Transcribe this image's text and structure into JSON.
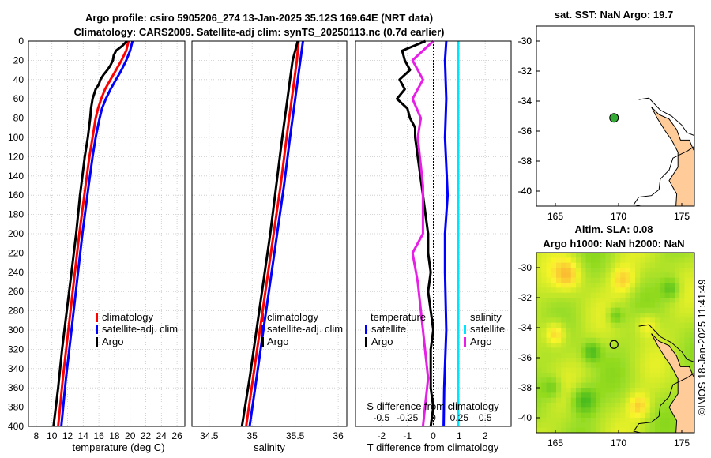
{
  "title": {
    "line1": "Argo profile: csiro 5905206_274 13-Jan-2025 35.12S 169.64E (NRT data)",
    "line2": "Climatology: CARS2009. Satellite-adj clim: synTS_20250113.nc (0.7d earlier)"
  },
  "colors": {
    "climatology": "#ff0000",
    "satellite": "#0000ff",
    "argo": "#000000",
    "salinity_sat": "#00e5ff",
    "salinity_argo": "#e61ee6",
    "land": "#ffcc99",
    "marker": "#33aa33"
  },
  "chart_data": [
    {
      "type": "line",
      "name": "temperature",
      "xlabel": "temperature (deg C)",
      "ylabel": "",
      "xlim": [
        7,
        27
      ],
      "ylim": [
        0,
        400
      ],
      "xticks": [
        8,
        10,
        12,
        14,
        16,
        18,
        20,
        22,
        24,
        26
      ],
      "yticks": [
        0,
        20,
        40,
        60,
        80,
        100,
        120,
        140,
        160,
        180,
        200,
        220,
        240,
        260,
        280,
        300,
        320,
        340,
        360,
        380,
        400
      ],
      "legend": [
        "climatology",
        "satellite-adj. clim",
        "Argo"
      ],
      "series": [
        {
          "name": "climatology",
          "depth": [
            0,
            10,
            20,
            30,
            40,
            50,
            60,
            70,
            80,
            100,
            120,
            150,
            200,
            250,
            300,
            350,
            400
          ],
          "values": [
            19.8,
            19.5,
            18.9,
            18.2,
            17.5,
            16.8,
            16.3,
            15.9,
            15.6,
            15.2,
            14.8,
            14.3,
            13.5,
            12.8,
            12.1,
            11.4,
            10.8
          ]
        },
        {
          "name": "satellite-adj. clim",
          "depth": [
            0,
            10,
            20,
            30,
            40,
            50,
            60,
            70,
            80,
            100,
            120,
            150,
            200,
            250,
            300,
            350,
            400
          ],
          "values": [
            20.3,
            20.0,
            19.5,
            18.9,
            18.2,
            17.5,
            16.9,
            16.4,
            16.1,
            15.6,
            15.2,
            14.7,
            13.9,
            13.2,
            12.5,
            11.8,
            11.2
          ]
        },
        {
          "name": "Argo",
          "depth": [
            0,
            5,
            10,
            15,
            20,
            25,
            30,
            35,
            40,
            45,
            50,
            55,
            60,
            70,
            80,
            100,
            120,
            140,
            160,
            200,
            240,
            280,
            320,
            360,
            400
          ],
          "values": [
            19.6,
            19.0,
            18.2,
            17.9,
            17.8,
            17.5,
            17.1,
            16.6,
            16.2,
            16.0,
            15.6,
            15.4,
            15.2,
            15.0,
            14.9,
            14.6,
            14.2,
            13.9,
            13.6,
            13.1,
            12.5,
            11.9,
            11.3,
            10.8,
            10.2
          ]
        }
      ]
    },
    {
      "type": "line",
      "name": "salinity",
      "xlabel": "salinity",
      "xlim": [
        34.3,
        36.1
      ],
      "ylim": [
        0,
        400
      ],
      "xticks": [
        34.5,
        35,
        35.5,
        36
      ],
      "legend": [
        "climatology",
        "satellite-adj. clim",
        "Argo"
      ],
      "series": [
        {
          "name": "climatology",
          "depth": [
            0,
            20,
            40,
            60,
            80,
            100,
            150,
            200,
            250,
            300,
            350,
            400
          ],
          "values": [
            35.54,
            35.52,
            35.49,
            35.46,
            35.43,
            35.4,
            35.33,
            35.25,
            35.17,
            35.09,
            35.01,
            34.93
          ]
        },
        {
          "name": "satellite-adj. clim",
          "depth": [
            0,
            20,
            40,
            60,
            80,
            100,
            150,
            200,
            250,
            300,
            350,
            400
          ],
          "values": [
            35.59,
            35.56,
            35.53,
            35.5,
            35.47,
            35.44,
            35.37,
            35.29,
            35.21,
            35.13,
            35.05,
            34.97
          ]
        },
        {
          "name": "Argo",
          "depth": [
            0,
            10,
            20,
            40,
            60,
            80,
            100,
            150,
            200,
            250,
            300,
            350,
            400
          ],
          "values": [
            35.53,
            35.5,
            35.47,
            35.44,
            35.41,
            35.38,
            35.35,
            35.28,
            35.21,
            35.13,
            35.05,
            34.97,
            34.88
          ]
        }
      ]
    },
    {
      "type": "line",
      "name": "difference",
      "xlabel": "T difference from climatology",
      "x2label": "S difference from climatology",
      "xlim": [
        -3,
        3
      ],
      "ylim": [
        0,
        400
      ],
      "xticks": [
        -2,
        -1,
        0,
        1,
        2
      ],
      "x2ticks": [
        "-0.5",
        "-0.25",
        "0",
        "0.25",
        "0.5"
      ],
      "legend_left_title": "temperature",
      "legend_right_title": "salinity",
      "legend_left": [
        "satellite",
        "Argo"
      ],
      "legend_right": [
        "satellite",
        "Argo"
      ],
      "series": [
        {
          "name": "T satellite",
          "depth": [
            0,
            20,
            60,
            100,
            160,
            200,
            240,
            300,
            360,
            400
          ],
          "values": [
            0.5,
            0.45,
            0.5,
            0.45,
            0.55,
            0.45,
            0.45,
            0.5,
            0.42,
            0.4
          ]
        },
        {
          "name": "T Argo",
          "depth": [
            0,
            10,
            20,
            30,
            40,
            50,
            60,
            70,
            80,
            90,
            100,
            120,
            140,
            160,
            180,
            200,
            220,
            240,
            260,
            280,
            300,
            320,
            340,
            360,
            380,
            400
          ],
          "values": [
            -0.3,
            -1.2,
            -1.1,
            -0.9,
            -1.3,
            -1.1,
            -1.4,
            -1.0,
            -0.9,
            -0.7,
            -0.7,
            -0.6,
            -0.5,
            -0.4,
            -0.3,
            -0.2,
            -0.2,
            -0.1,
            -0.2,
            -0.1,
            0.0,
            -0.1,
            -0.1,
            -0.1,
            0.0,
            -0.1
          ]
        },
        {
          "name": "S satellite",
          "depth": [
            0,
            100,
            200,
            300,
            400
          ],
          "values": [
            0.24,
            0.24,
            0.24,
            0.24,
            0.24
          ]
        },
        {
          "name": "S Argo",
          "depth": [
            0,
            20,
            40,
            60,
            80,
            100,
            150,
            200,
            220,
            250,
            300,
            350,
            400
          ],
          "values": [
            0.0,
            -0.2,
            -0.1,
            -0.2,
            -0.12,
            -0.15,
            -0.1,
            -0.1,
            -0.2,
            -0.15,
            -0.1,
            -0.05,
            -0.1
          ]
        }
      ]
    },
    {
      "type": "map",
      "name": "sst-map",
      "title": "sat. SST: NaN Argo: 19.7",
      "xlim": [
        163.5,
        176
      ],
      "ylim": [
        -41,
        -29
      ],
      "xticks": [
        165,
        170,
        175
      ],
      "yticks": [
        -30,
        -32,
        -34,
        -36,
        -38,
        -40
      ],
      "float_position": {
        "lon": 169.64,
        "lat": -35.12
      }
    },
    {
      "type": "heatmap",
      "name": "sla-map",
      "title_line1": "Altim. SLA: 0.08",
      "title_line2": "Argo h1000: NaN h2000: NaN",
      "xlim": [
        163.5,
        176
      ],
      "ylim": [
        -41,
        -29
      ],
      "xticks": [
        165,
        170,
        175
      ],
      "yticks": [
        -30,
        -32,
        -34,
        -36,
        -38,
        -40
      ],
      "float_position": {
        "lon": 169.64,
        "lat": -35.12
      }
    }
  ],
  "credit": "©IMOS 18-Jan-2025 11:41:49"
}
